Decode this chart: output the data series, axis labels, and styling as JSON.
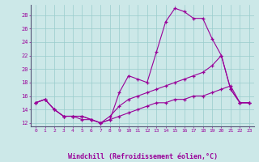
{
  "bg_color": "#cce8e8",
  "line_color": "#990099",
  "grid_color": "#99cccc",
  "xlabel": "Windchill (Refroidissement éolien,°C)",
  "xlim": [
    -0.5,
    23.5
  ],
  "ylim": [
    11.5,
    29.5
  ],
  "yticks": [
    12,
    14,
    16,
    18,
    20,
    22,
    24,
    26,
    28
  ],
  "xticks": [
    0,
    1,
    2,
    3,
    4,
    5,
    6,
    7,
    8,
    9,
    10,
    11,
    12,
    13,
    14,
    15,
    16,
    17,
    18,
    19,
    20,
    21,
    22,
    23
  ],
  "line1_x": [
    0,
    1,
    2,
    3,
    4,
    5,
    6,
    7,
    8,
    9,
    10,
    11,
    12,
    13,
    14,
    15,
    16,
    17,
    18,
    19,
    20,
    21,
    22,
    23
  ],
  "line1_y": [
    15.0,
    15.5,
    14.0,
    13.0,
    13.0,
    12.5,
    12.5,
    12.0,
    12.5,
    16.5,
    19.0,
    18.5,
    18.0,
    22.5,
    27.0,
    29.0,
    28.5,
    27.5,
    27.5,
    24.5,
    22.0,
    17.0,
    15.0,
    15.0
  ],
  "line2_x": [
    0,
    1,
    2,
    3,
    4,
    5,
    6,
    7,
    8,
    9,
    10,
    11,
    12,
    13,
    14,
    15,
    16,
    17,
    18,
    19,
    20,
    21,
    22,
    23
  ],
  "line2_y": [
    15.0,
    15.5,
    14.0,
    13.0,
    13.0,
    13.0,
    12.5,
    12.0,
    13.0,
    14.5,
    15.5,
    16.0,
    16.5,
    17.0,
    17.5,
    18.0,
    18.5,
    19.0,
    19.5,
    20.5,
    22.0,
    17.0,
    15.0,
    15.0
  ],
  "line3_x": [
    0,
    1,
    2,
    3,
    4,
    5,
    6,
    7,
    8,
    9,
    10,
    11,
    12,
    13,
    14,
    15,
    16,
    17,
    18,
    19,
    20,
    21,
    22,
    23
  ],
  "line3_y": [
    15.0,
    15.5,
    14.0,
    13.0,
    13.0,
    13.0,
    12.5,
    12.0,
    12.5,
    13.0,
    13.5,
    14.0,
    14.5,
    15.0,
    15.0,
    15.5,
    15.5,
    16.0,
    16.0,
    16.5,
    17.0,
    17.5,
    15.0,
    15.0
  ]
}
